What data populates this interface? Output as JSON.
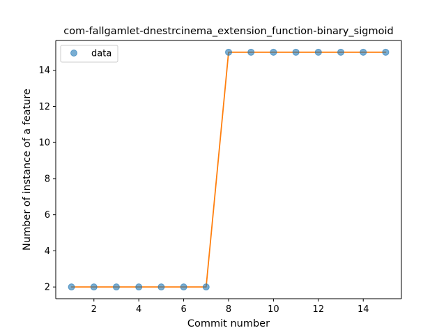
{
  "chart_data": {
    "type": "line",
    "title": "com-fallgamlet-dnestrcinema_extension_function-binary_sigmoid",
    "xlabel": "Commit number",
    "ylabel": "Number of instance of a feature",
    "xlim": [
      0.3,
      15.7
    ],
    "ylim": [
      1.35,
      15.65
    ],
    "xticks": [
      2,
      4,
      6,
      8,
      10,
      12,
      14
    ],
    "yticks": [
      2,
      4,
      6,
      8,
      10,
      12,
      14
    ],
    "grid": false,
    "legend": {
      "position": "top-left",
      "entries": [
        "data"
      ]
    },
    "series": [
      {
        "name": "data",
        "kind": "scatter",
        "color": "#1f77b4",
        "x": [
          1,
          2,
          3,
          4,
          5,
          6,
          7,
          8,
          9,
          10,
          11,
          12,
          13,
          14,
          15
        ],
        "y": [
          2,
          2,
          2,
          2,
          2,
          2,
          2,
          15,
          15,
          15,
          15,
          15,
          15,
          15,
          15
        ]
      },
      {
        "kind": "line",
        "color": "#ff7f0e",
        "x": [
          1,
          2,
          3,
          4,
          5,
          6,
          7,
          8,
          9,
          10,
          11,
          12,
          13,
          14,
          15
        ],
        "y": [
          2,
          2,
          2,
          2,
          2,
          2,
          2,
          15,
          15,
          15,
          15,
          15,
          15,
          15,
          15
        ]
      }
    ]
  }
}
